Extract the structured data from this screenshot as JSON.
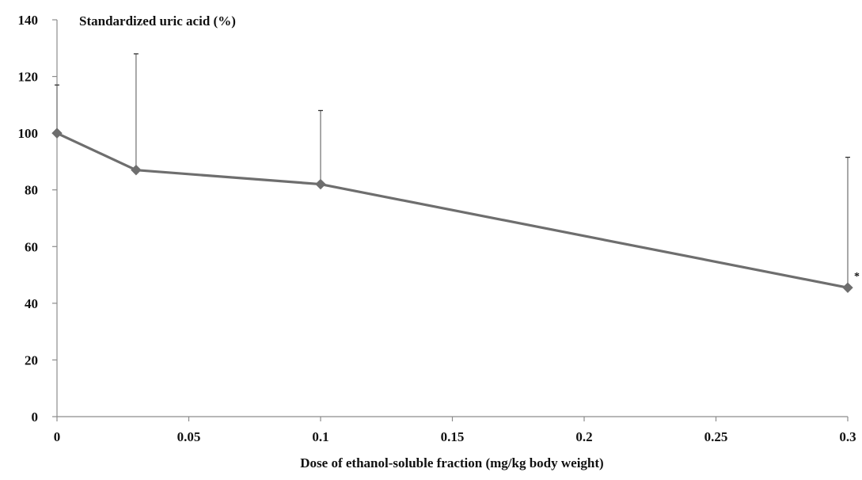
{
  "chart_data": {
    "type": "line",
    "title": "Standardized uric acid (%)",
    "xlabel": "Dose of ethanol-soluble fraction (mg/kg body weight)",
    "ylabel": "",
    "xlim": [
      0,
      0.3
    ],
    "ylim": [
      0,
      140
    ],
    "x_ticks": [
      0,
      0.05,
      0.1,
      0.15,
      0.2,
      0.25,
      0.3
    ],
    "x_tick_labels": [
      "0",
      "0.05",
      "0.1",
      "0.15",
      "0.2",
      "0.25",
      "0.3"
    ],
    "y_ticks": [
      0,
      20,
      40,
      60,
      80,
      100,
      120,
      140
    ],
    "y_tick_labels": [
      "0",
      "20",
      "40",
      "60",
      "80",
      "100",
      "120",
      "140"
    ],
    "grid": false,
    "legend": "none",
    "series": [
      {
        "x": [
          0,
          0.03,
          0.1,
          0.3
        ],
        "values": [
          100,
          87,
          82,
          45.5
        ],
        "error_upper": [
          17,
          41,
          26,
          46
        ],
        "marker": "diamond",
        "color": "#6e6e6e"
      }
    ],
    "annotations": [
      {
        "x": 0.3,
        "y": 45.5,
        "text": "*"
      }
    ]
  }
}
